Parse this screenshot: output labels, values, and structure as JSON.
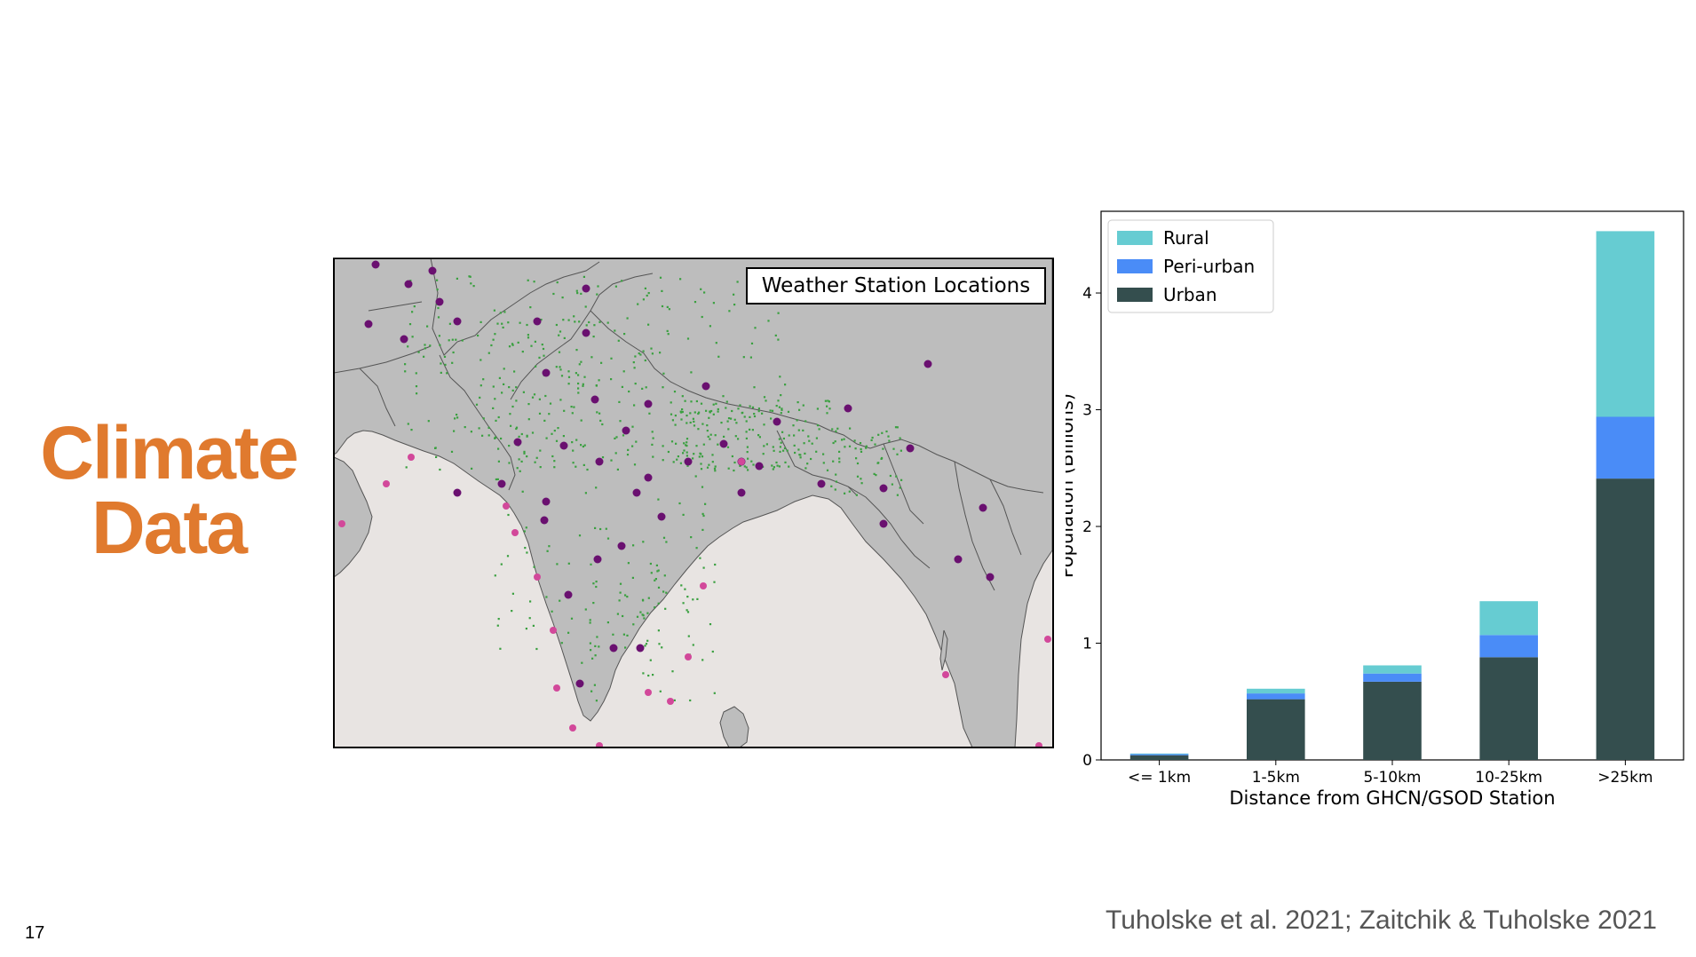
{
  "slide": {
    "title_line1": "Climate",
    "title_line2": "Data",
    "page_number": "17",
    "citation": "Tuholske et al. 2021; Zaitchik & Tuholske 2021"
  },
  "map": {
    "legend_label": "Weather Station Locations",
    "colors": {
      "land": "#BDBDBD",
      "ocean": "#E8E4E2",
      "border": "#555555",
      "station_inland": "#6A1070",
      "station_coastal": "#D2489A",
      "population": "#3AA040"
    }
  },
  "chart_data": {
    "type": "bar",
    "stacked": true,
    "categories": [
      "<= 1km",
      "1-5km",
      "5-10km",
      "10-25km",
      ">25km"
    ],
    "series": [
      {
        "name": "Urban",
        "color": "#344E4E",
        "values": [
          0.04,
          0.52,
          0.67,
          0.88,
          2.41
        ]
      },
      {
        "name": "Peri-urban",
        "color": "#4A8CF7",
        "values": [
          0.01,
          0.05,
          0.07,
          0.19,
          0.53
        ]
      },
      {
        "name": "Rural",
        "color": "#66CCD2",
        "values": [
          0.005,
          0.04,
          0.07,
          0.29,
          1.59
        ]
      }
    ],
    "legend_order": [
      "Rural",
      "Peri-urban",
      "Urban"
    ],
    "legend_position": "top-left",
    "xlabel": "Distance from GHCN/GSOD Station",
    "ylabel": "Population (Billions)",
    "ylim": [
      0,
      4.7
    ],
    "yticks": [
      "0",
      "1",
      "2",
      "3",
      "4"
    ],
    "grid": false
  }
}
